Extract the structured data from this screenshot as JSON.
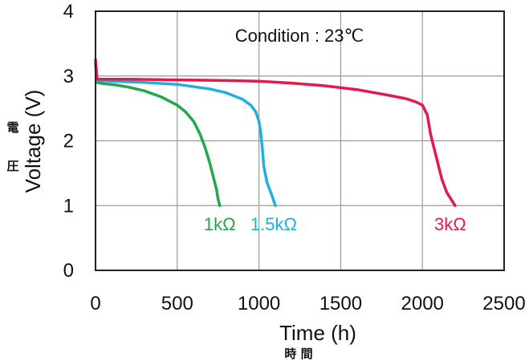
{
  "chart_data": {
    "type": "line",
    "title": "",
    "xlabel": "Time (h)",
    "xlabel_jp": "時 間",
    "ylabel": "Voltage (V)",
    "ylabel_jp_top": "電",
    "ylabel_jp_bottom": "圧",
    "annotation": "Condition : 23℃",
    "xlim": [
      0,
      2500
    ],
    "ylim": [
      0,
      4
    ],
    "xticks": [
      "0",
      "500",
      "1000",
      "1500",
      "2000",
      "2500"
    ],
    "yticks": [
      "0",
      "1",
      "2",
      "3",
      "4"
    ],
    "grid": true,
    "series": [
      {
        "name": "1kΩ",
        "color": "#22a84a",
        "x": [
          0,
          10,
          50,
          100,
          200,
          300,
          400,
          500,
          550,
          600,
          640,
          670,
          700,
          720,
          740,
          750,
          760
        ],
        "y": [
          3.2,
          2.9,
          2.88,
          2.87,
          2.83,
          2.77,
          2.68,
          2.55,
          2.45,
          2.3,
          2.1,
          1.9,
          1.65,
          1.45,
          1.25,
          1.1,
          1.0
        ]
      },
      {
        "name": "1.5kΩ",
        "color": "#1fb0dd",
        "x": [
          0,
          10,
          100,
          300,
          500,
          700,
          800,
          900,
          950,
          980,
          1000,
          1010,
          1020,
          1030,
          1050,
          1080,
          1100
        ],
        "y": [
          3.2,
          2.93,
          2.92,
          2.9,
          2.87,
          2.8,
          2.74,
          2.64,
          2.55,
          2.45,
          2.3,
          2.15,
          1.9,
          1.6,
          1.35,
          1.15,
          1.0
        ]
      },
      {
        "name": "3kΩ",
        "color": "#e5194b",
        "x": [
          0,
          10,
          200,
          500,
          800,
          1000,
          1200,
          1400,
          1600,
          1800,
          1900,
          1960,
          2000,
          2030,
          2050,
          2080,
          2120,
          2150,
          2180,
          2200
        ],
        "y": [
          3.25,
          2.95,
          2.95,
          2.94,
          2.93,
          2.92,
          2.89,
          2.85,
          2.79,
          2.7,
          2.65,
          2.6,
          2.55,
          2.4,
          2.1,
          1.8,
          1.4,
          1.2,
          1.08,
          1.0
        ]
      }
    ],
    "series_labels": [
      {
        "text": "1kΩ",
        "color": "#22a84a",
        "x": 760,
        "y": 0.72
      },
      {
        "text": "1.5kΩ",
        "color": "#1fb0dd",
        "x": 1090,
        "y": 0.72
      },
      {
        "text": "3kΩ",
        "color": "#e5194b",
        "x": 2170,
        "y": 0.72
      }
    ]
  }
}
